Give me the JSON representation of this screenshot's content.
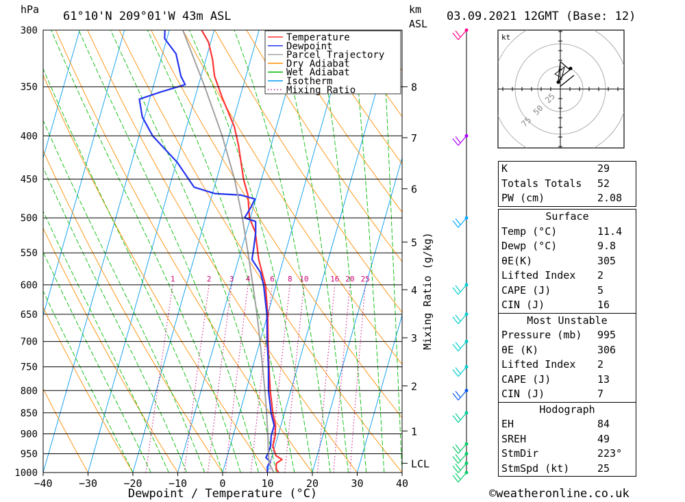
{
  "header": {
    "location": "61°10'N  209°01'W  43m  ASL",
    "datetime": "03.09.2021  12GMT  (Base: 12)",
    "pressure_unit": "hPa",
    "height_unit": "km",
    "height_unit2": "ASL"
  },
  "footer": {
    "credit": "©weatheronline.co.uk"
  },
  "legend": [
    {
      "label": "Temperature",
      "color": "#ff3333",
      "style": "solid"
    },
    {
      "label": "Dewpoint",
      "color": "#2233ee",
      "style": "solid"
    },
    {
      "label": "Parcel Trajectory",
      "color": "#a0a0a0",
      "style": "solid"
    },
    {
      "label": "Dry Adiabat",
      "color": "#ff8c00",
      "style": "solid"
    },
    {
      "label": "Wet Adiabat",
      "color": "#00bb00",
      "style": "solid"
    },
    {
      "label": "Isotherm",
      "color": "#0099ee",
      "style": "solid"
    },
    {
      "label": "Mixing Ratio",
      "color": "#cc0077",
      "style": "dotted"
    }
  ],
  "chart_data": {
    "type": "line",
    "subtype": "skew-T log-p",
    "xlabel": "Dewpoint / Temperature (°C)",
    "ylabel_right": "Mixing Ratio (g/kg)",
    "xlim": [
      -40,
      40
    ],
    "ylim": [
      1000,
      300
    ],
    "x_ticks": [
      -40,
      -30,
      -20,
      -10,
      0,
      10,
      20,
      30,
      40
    ],
    "pressure_ticks": [
      300,
      350,
      400,
      450,
      500,
      550,
      600,
      650,
      700,
      750,
      800,
      850,
      900,
      950,
      1000
    ],
    "height_km_ticks": [
      {
        "label": "8",
        "p": 350
      },
      {
        "label": "7",
        "p": 402
      },
      {
        "label": "6",
        "p": 462
      },
      {
        "label": "5",
        "p": 534
      },
      {
        "label": "4",
        "p": 608
      },
      {
        "label": "3",
        "p": 693
      },
      {
        "label": "2",
        "p": 790
      },
      {
        "label": "1",
        "p": 893
      },
      {
        "label": "LCL",
        "p": 975
      }
    ],
    "mixing_ratio_labels": [
      "1",
      "2",
      "3",
      "4",
      "6",
      "8",
      "10",
      "16",
      "20",
      "25"
    ],
    "series": [
      {
        "name": "Temperature",
        "points": [
          [
            1000,
            12.5
          ],
          [
            990,
            11.7
          ],
          [
            975,
            11.4
          ],
          [
            965,
            12.4
          ],
          [
            955,
            10.8
          ],
          [
            930,
            9.5
          ],
          [
            905,
            9.4
          ],
          [
            880,
            8.8
          ],
          [
            850,
            7.4
          ],
          [
            800,
            5.4
          ],
          [
            750,
            3.6
          ],
          [
            700,
            1.8
          ],
          [
            650,
            0.0
          ],
          [
            600,
            -2.4
          ],
          [
            560,
            -5.5
          ],
          [
            520,
            -8.0
          ],
          [
            500,
            -10.2
          ],
          [
            470,
            -12.0
          ],
          [
            450,
            -14.0
          ],
          [
            410,
            -17.3
          ],
          [
            390,
            -19.4
          ],
          [
            360,
            -24.0
          ],
          [
            340,
            -27.0
          ],
          [
            325,
            -28.5
          ],
          [
            310,
            -30.5
          ],
          [
            300,
            -32.8
          ]
        ]
      },
      {
        "name": "Dewpoint",
        "points": [
          [
            1000,
            10.0
          ],
          [
            985,
            9.6
          ],
          [
            970,
            9.8
          ],
          [
            960,
            8.7
          ],
          [
            950,
            8.9
          ],
          [
            930,
            9.0
          ],
          [
            905,
            8.5
          ],
          [
            880,
            8.5
          ],
          [
            850,
            7.0
          ],
          [
            800,
            5.0
          ],
          [
            750,
            3.5
          ],
          [
            700,
            1.6
          ],
          [
            650,
            -0.2
          ],
          [
            600,
            -2.8
          ],
          [
            580,
            -4.3
          ],
          [
            560,
            -7.0
          ],
          [
            540,
            -7.4
          ],
          [
            520,
            -7.9
          ],
          [
            505,
            -8.6
          ],
          [
            500,
            -11.3
          ],
          [
            485,
            -10.5
          ],
          [
            475,
            -10.2
          ],
          [
            470,
            -13.5
          ],
          [
            468,
            -19.5
          ],
          [
            460,
            -24.5
          ],
          [
            430,
            -29.8
          ],
          [
            400,
            -37.0
          ],
          [
            380,
            -40.5
          ],
          [
            362,
            -42.3
          ],
          [
            355,
            -38.0
          ],
          [
            348,
            -33.0
          ],
          [
            340,
            -34.5
          ],
          [
            320,
            -37.0
          ],
          [
            307,
            -40.5
          ],
          [
            300,
            -41.0
          ]
        ]
      },
      {
        "name": "Parcel Trajectory",
        "points": [
          [
            1000,
            11.4
          ],
          [
            975,
            9.8
          ],
          [
            950,
            9.0
          ],
          [
            900,
            7.6
          ],
          [
            850,
            6.0
          ],
          [
            800,
            4.2
          ],
          [
            750,
            2.2
          ],
          [
            700,
            0.0
          ],
          [
            650,
            -2.4
          ],
          [
            600,
            -5.2
          ],
          [
            550,
            -8.3
          ],
          [
            500,
            -11.8
          ],
          [
            450,
            -16.0
          ],
          [
            400,
            -21.5
          ],
          [
            350,
            -28.5
          ],
          [
            300,
            -37.0
          ]
        ]
      }
    ],
    "wind_barbs": [
      {
        "p": 1000,
        "color": "#00cc66"
      },
      {
        "p": 975,
        "color": "#00cc66"
      },
      {
        "p": 950,
        "color": "#00cc66"
      },
      {
        "p": 925,
        "color": "#00cc66"
      },
      {
        "p": 850,
        "color": "#00cc99"
      },
      {
        "p": 800,
        "color": "#0055ee"
      },
      {
        "p": 750,
        "color": "#00cccc"
      },
      {
        "p": 700,
        "color": "#00cccc"
      },
      {
        "p": 650,
        "color": "#00cccc"
      },
      {
        "p": 600,
        "color": "#00cccc"
      },
      {
        "p": 500,
        "color": "#00aaff"
      },
      {
        "p": 400,
        "color": "#aa00ff"
      },
      {
        "p": 300,
        "color": "#ff0088"
      }
    ],
    "hodograph": {
      "unit": "kt",
      "ring_labels": [
        "25",
        "50",
        "75"
      ]
    }
  },
  "indices": {
    "top": [
      {
        "label": "K",
        "value": "29"
      },
      {
        "label": "Totals Totals",
        "value": "52"
      },
      {
        "label": "PW (cm)",
        "value": "2.08"
      }
    ],
    "surface": {
      "title": "Surface",
      "rows": [
        {
          "label": "Temp (°C)",
          "value": "11.4"
        },
        {
          "label": "Dewp (°C)",
          "value": "9.8"
        },
        {
          "label": "θE(K)",
          "value": "305"
        },
        {
          "label": "Lifted Index",
          "value": "2"
        },
        {
          "label": "CAPE (J)",
          "value": "5"
        },
        {
          "label": "CIN (J)",
          "value": "16"
        }
      ]
    },
    "most_unstable": {
      "title": "Most Unstable",
      "rows": [
        {
          "label": "Pressure (mb)",
          "value": "995"
        },
        {
          "label": "θE (K)",
          "value": "306"
        },
        {
          "label": "Lifted Index",
          "value": "2"
        },
        {
          "label": "CAPE (J)",
          "value": "13"
        },
        {
          "label": "CIN (J)",
          "value": "7"
        }
      ]
    },
    "hodograph": {
      "title": "Hodograph",
      "rows": [
        {
          "label": "EH",
          "value": "84"
        },
        {
          "label": "SREH",
          "value": "49"
        },
        {
          "label": "StmDir",
          "value": "223°"
        },
        {
          "label": "StmSpd (kt)",
          "value": "25"
        }
      ]
    }
  }
}
